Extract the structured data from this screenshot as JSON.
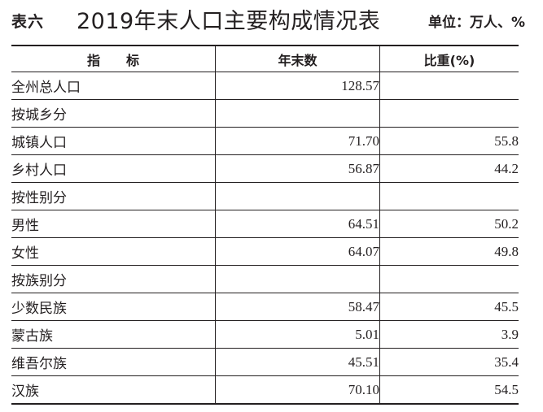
{
  "header": {
    "table_no": "表六",
    "title": "2019年末人口主要构成情况表",
    "unit": "单位：万人、%"
  },
  "columns": [
    "指　　标",
    "年末数",
    "比重(%)"
  ],
  "rows": [
    {
      "label": "全州总人口",
      "indent": 0,
      "value": "128.57",
      "share": ""
    },
    {
      "label": "按城乡分",
      "indent": 0,
      "value": "",
      "share": ""
    },
    {
      "label": "城镇人口",
      "indent": 1,
      "value": "71.70",
      "share": "55.8"
    },
    {
      "label": "乡村人口",
      "indent": 1,
      "value": "56.87",
      "share": "44.2"
    },
    {
      "label": "按性别分",
      "indent": 0,
      "value": "",
      "share": ""
    },
    {
      "label": "男性",
      "indent": 1,
      "value": "64.51",
      "share": "50.2"
    },
    {
      "label": "女性",
      "indent": 1,
      "value": "64.07",
      "share": "49.8"
    },
    {
      "label": "按族别分",
      "indent": 0,
      "value": "",
      "share": ""
    },
    {
      "label": "少数民族",
      "indent": 1,
      "value": "58.47",
      "share": "45.5"
    },
    {
      "label": "蒙古族",
      "indent": 1,
      "value": "5.01",
      "share": "3.9"
    },
    {
      "label": "维吾尔族",
      "indent": 1,
      "value": "45.51",
      "share": "35.4"
    },
    {
      "label": "汉族",
      "indent": 2,
      "value": "70.10",
      "share": "54.5"
    }
  ]
}
